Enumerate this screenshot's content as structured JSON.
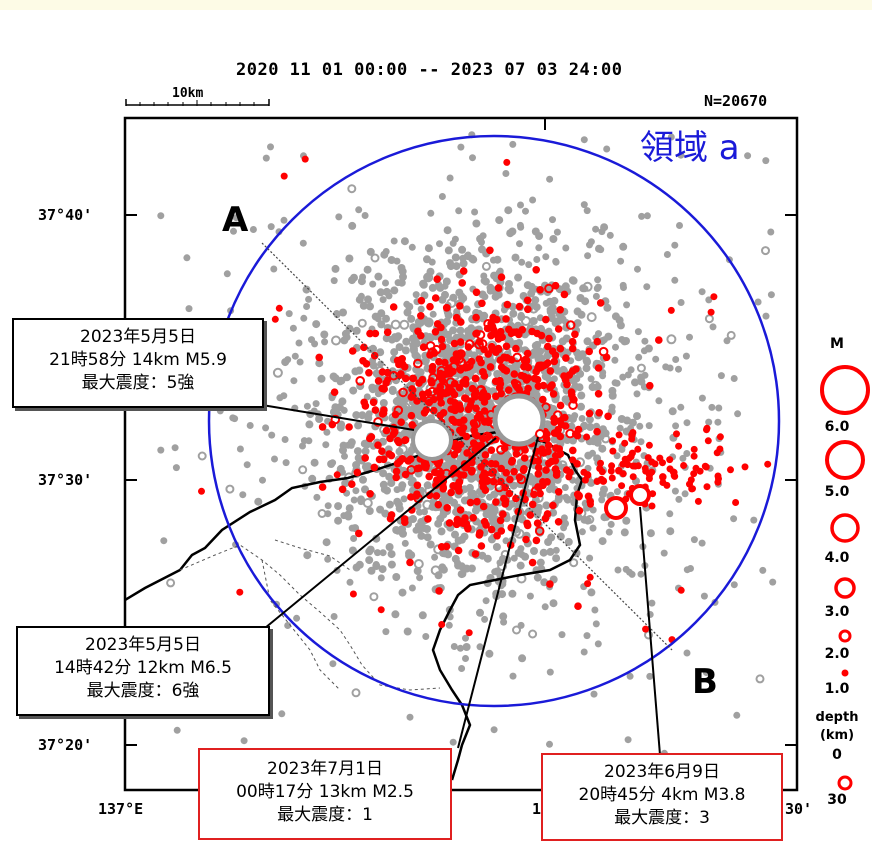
{
  "header": {
    "period": "2020 11 01 00:00 -- 2023 07 03 24:00",
    "count": "N=20670",
    "scale_label": "10km"
  },
  "axes": {
    "lat_labels": [
      "37°40'",
      "37°30'",
      "37°20'"
    ],
    "lon_labels": [
      "137°E",
      "13",
      "30'"
    ]
  },
  "region_label": "領域 a",
  "section_labels": {
    "start": "A",
    "end": "B"
  },
  "callouts": [
    {
      "date": "2023年5月5日",
      "detail": "21時58分 14km  M5.9",
      "intensity": "最大震度：5強",
      "border": "#000000"
    },
    {
      "date": "2023年5月5日",
      "detail": "14時42分 12km  M6.5",
      "intensity": "最大震度：6強",
      "border": "#000000"
    },
    {
      "date": "2023年7月1日",
      "detail": "00時17分 13km  M2.5",
      "intensity": "最大震度：1",
      "border": "#e02020"
    },
    {
      "date": "2023年6月9日",
      "detail": "20時45分 4km  M3.8",
      "intensity": "最大震度：3",
      "border": "#e02020"
    }
  ],
  "legend": {
    "magnitude_title": "M",
    "magnitude_values": [
      "6.0",
      "5.0",
      "4.0",
      "3.0",
      "2.0",
      "1.0"
    ],
    "depth_title": "depth",
    "depth_unit": "(km)",
    "depth_values": [
      "0",
      "30"
    ]
  },
  "colors": {
    "recent_events": "#ff0000",
    "older_events": "#a0a0a0",
    "region_circle": "#1a1ad8",
    "region_text": "#1a1ad8",
    "callout_highlight": "#e02020"
  }
}
